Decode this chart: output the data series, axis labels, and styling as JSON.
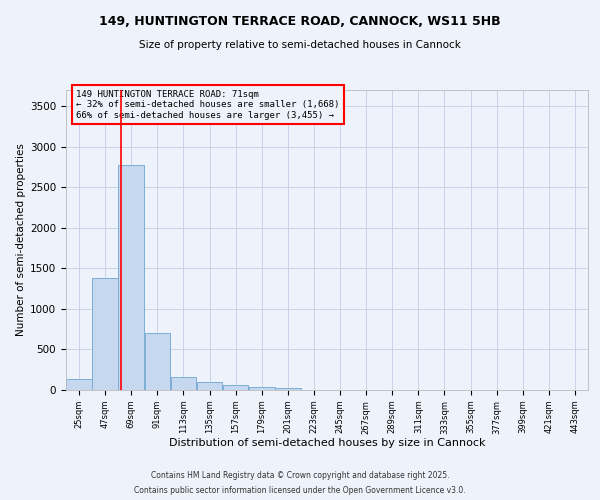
{
  "title1": "149, HUNTINGTON TERRACE ROAD, CANNOCK, WS11 5HB",
  "title2": "Size of property relative to semi-detached houses in Cannock",
  "xlabel": "Distribution of semi-detached houses by size in Cannock",
  "ylabel": "Number of semi-detached properties",
  "bar_values": [
    130,
    1380,
    2780,
    700,
    160,
    95,
    65,
    35,
    20,
    5,
    2,
    1,
    0,
    0,
    0,
    0,
    0,
    0,
    0,
    0
  ],
  "bin_starts": [
    25,
    47,
    69,
    91,
    113,
    135,
    157,
    179,
    201,
    223,
    245,
    267,
    289,
    311,
    333,
    355,
    377,
    399,
    421,
    443
  ],
  "bin_width": 22,
  "bar_color": "#c5d8f0",
  "bar_edge_color": "#7bafd4",
  "red_line_x": 71,
  "ylim": [
    0,
    3700
  ],
  "yticks": [
    0,
    500,
    1000,
    1500,
    2000,
    2500,
    3000,
    3500
  ],
  "annotation_title": "149 HUNTINGTON TERRACE ROAD: 71sqm",
  "annotation_line1": "← 32% of semi-detached houses are smaller (1,668)",
  "annotation_line2": "66% of semi-detached houses are larger (3,455) →",
  "footnote1": "Contains HM Land Registry data © Crown copyright and database right 2025.",
  "footnote2": "Contains public sector information licensed under the Open Government Licence v3.0.",
  "background_color": "#eef2fa",
  "grid_color": "#c8d4e8"
}
